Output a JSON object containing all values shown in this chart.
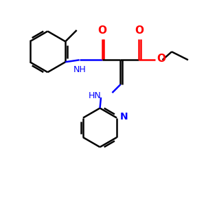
{
  "background_color": "#ffffff",
  "bond_color": "#000000",
  "red_color": "#ff0000",
  "blue_color": "#0000ff",
  "lw": 1.8,
  "figsize": [
    3.0,
    3.0
  ],
  "dpi": 100,
  "xlim": [
    0,
    10
  ],
  "ylim": [
    0,
    10
  ]
}
